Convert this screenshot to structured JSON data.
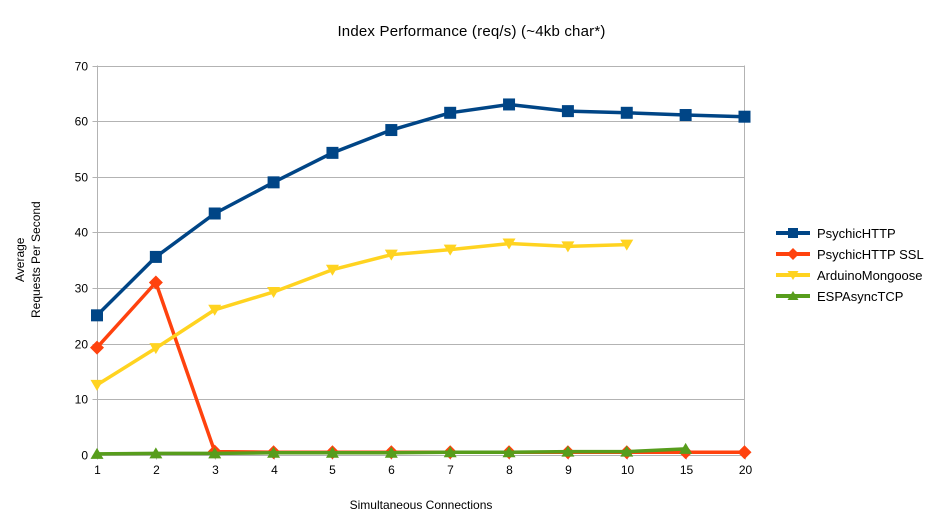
{
  "chart_data": {
    "type": "line",
    "title": "Index Performance (req/s) (~4kb char*)",
    "xlabel": "Simultaneous Connections",
    "ylabel": "Average\nRequests Per Second",
    "categories": [
      "1",
      "2",
      "3",
      "4",
      "5",
      "6",
      "7",
      "8",
      "9",
      "10",
      "15",
      "20"
    ],
    "ylim": [
      0,
      70
    ],
    "yticks": [
      0,
      10,
      20,
      30,
      40,
      50,
      60,
      70
    ],
    "grid": true,
    "legend_position": "right",
    "series": [
      {
        "name": "PsychicHTTP",
        "color": "#004586",
        "marker": "square",
        "values": [
          25.1,
          35.6,
          43.4,
          49.0,
          54.3,
          58.4,
          61.5,
          63.0,
          61.8,
          61.5,
          61.1,
          60.8
        ]
      },
      {
        "name": "PsychicHTTP SSL",
        "color": "#FF420E",
        "marker": "diamond",
        "values": [
          19.3,
          31.0,
          0.6,
          0.5,
          0.5,
          0.5,
          0.5,
          0.5,
          0.5,
          0.5,
          0.5,
          0.5
        ]
      },
      {
        "name": "ArduinoMongoose",
        "color": "#FFD320",
        "marker": "triangle-down",
        "values": [
          12.6,
          19.2,
          26.1,
          29.3,
          33.3,
          36.0,
          36.9,
          38.0,
          37.5,
          37.8,
          null,
          null
        ]
      },
      {
        "name": "ESPAsyncTCP",
        "color": "#579D1C",
        "marker": "triangle-up",
        "values": [
          0.2,
          0.3,
          0.3,
          0.4,
          0.4,
          0.4,
          0.5,
          0.5,
          0.6,
          0.6,
          1.1,
          null
        ]
      }
    ],
    "colors": {
      "grid": "#b3b3b3",
      "axis": "#b3b3b3",
      "text": "#000000",
      "background": "#ffffff"
    }
  }
}
